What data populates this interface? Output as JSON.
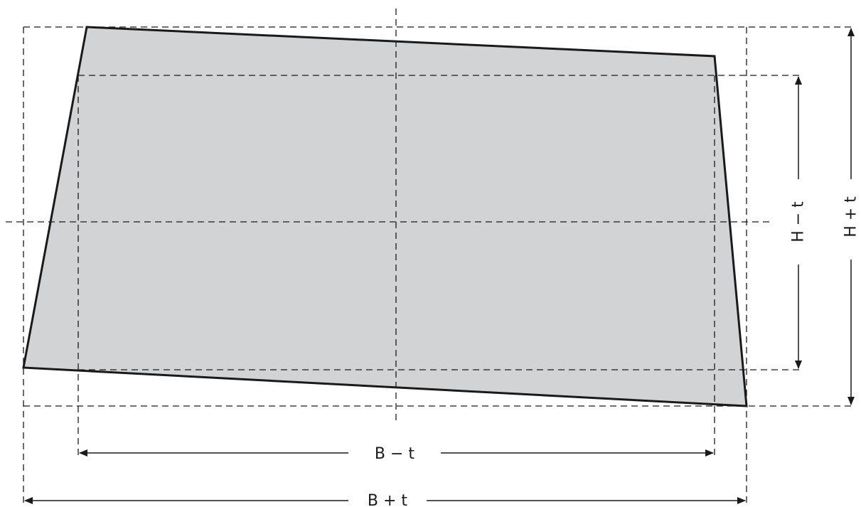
{
  "colors": {
    "fill": "#d2d3d5",
    "stroke": "#1a1a1a",
    "background": "#ffffff"
  },
  "labels": {
    "b_minus_t": "B − t",
    "b_plus_t": "B + t",
    "h_minus_t": "H − t",
    "h_plus_t": "H + t"
  }
}
